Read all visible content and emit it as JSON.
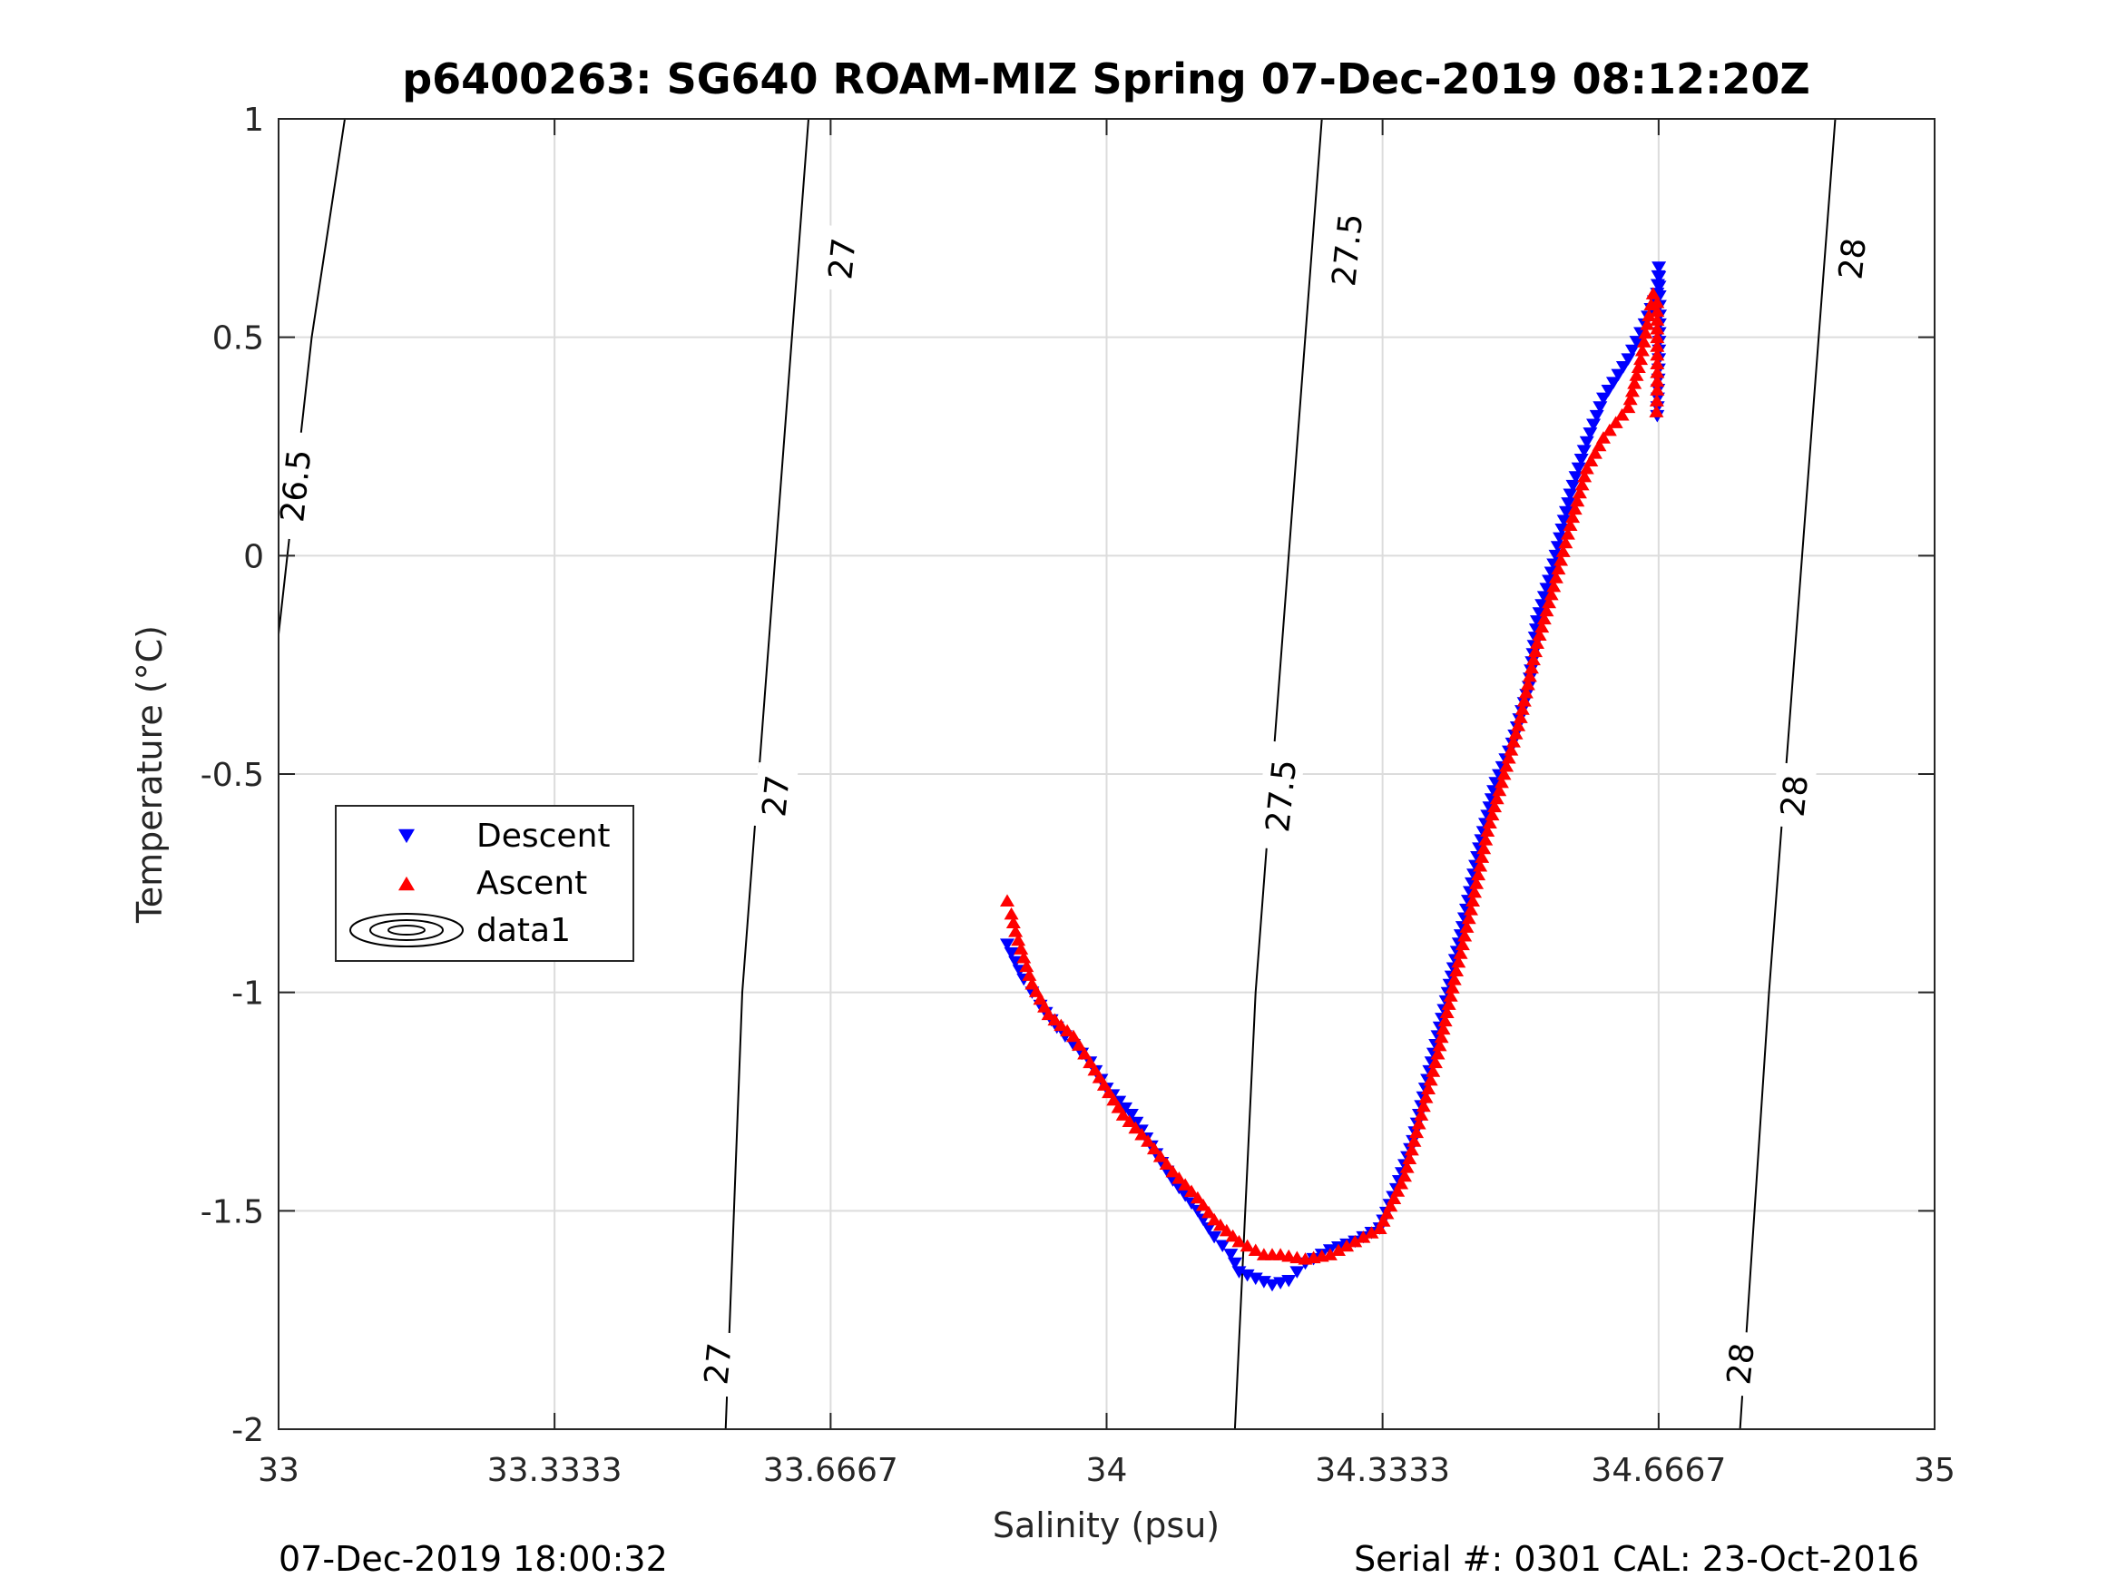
{
  "chart_data": {
    "type": "scatter",
    "title": "p6400263: SG640 ROAM-MIZ Spring 07-Dec-2019 08:12:20Z",
    "xlabel": "Salinity (psu)",
    "ylabel": "Temperature (°C)",
    "xlim": [
      33,
      35
    ],
    "ylim": [
      -2,
      1
    ],
    "x_ticks": [
      33,
      33.3333,
      33.6667,
      34,
      34.3333,
      34.6667,
      35
    ],
    "x_tick_labels": [
      "33",
      "33.3333",
      "33.6667",
      "34",
      "34.3333",
      "34.6667",
      "35"
    ],
    "y_ticks": [
      -2,
      -1.5,
      -1,
      -0.5,
      0,
      0.5,
      1
    ],
    "y_tick_labels": [
      "-2",
      "-1.5",
      "-1",
      "-0.5",
      "0",
      "0.5",
      "1"
    ],
    "grid": true,
    "legend_position": "middle-left",
    "legend": [
      "Descent",
      "Ascent",
      "data1"
    ],
    "series": [
      {
        "name": "Descent",
        "marker": "triangle-down",
        "color": "#0000ff",
        "points": [
          [
            33.88,
            -0.89
          ],
          [
            33.89,
            -0.93
          ],
          [
            33.9,
            -0.97
          ],
          [
            33.91,
            -1.0
          ],
          [
            33.92,
            -1.03
          ],
          [
            33.94,
            -1.08
          ],
          [
            33.96,
            -1.12
          ],
          [
            33.98,
            -1.16
          ],
          [
            34.0,
            -1.22
          ],
          [
            34.03,
            -1.28
          ],
          [
            34.06,
            -1.37
          ],
          [
            34.08,
            -1.43
          ],
          [
            34.11,
            -1.5
          ],
          [
            34.13,
            -1.56
          ],
          [
            34.15,
            -1.6
          ],
          [
            34.16,
            -1.64
          ],
          [
            34.2,
            -1.67
          ],
          [
            34.22,
            -1.66
          ],
          [
            34.24,
            -1.62
          ],
          [
            34.27,
            -1.59
          ],
          [
            34.3,
            -1.57
          ],
          [
            34.33,
            -1.54
          ],
          [
            34.35,
            -1.45
          ],
          [
            34.37,
            -1.34
          ],
          [
            34.39,
            -1.18
          ],
          [
            34.41,
            -1.02
          ],
          [
            34.43,
            -0.85
          ],
          [
            34.45,
            -0.67
          ],
          [
            34.47,
            -0.52
          ],
          [
            34.49,
            -0.43
          ],
          [
            34.51,
            -0.3
          ],
          [
            34.52,
            -0.15
          ],
          [
            34.54,
            -0.02
          ],
          [
            34.56,
            0.14
          ],
          [
            34.58,
            0.26
          ],
          [
            34.6,
            0.36
          ],
          [
            34.63,
            0.45
          ],
          [
            34.65,
            0.53
          ],
          [
            34.665,
            0.6
          ],
          [
            34.667,
            0.66
          ],
          [
            34.668,
            0.55
          ],
          [
            34.667,
            0.45
          ],
          [
            34.666,
            0.38
          ],
          [
            34.665,
            0.32
          ]
        ]
      },
      {
        "name": "Ascent",
        "marker": "triangle-up",
        "color": "#ff0000",
        "points": [
          [
            33.88,
            -0.79
          ],
          [
            33.885,
            -0.82
          ],
          [
            33.89,
            -0.86
          ],
          [
            33.9,
            -0.92
          ],
          [
            33.91,
            -0.98
          ],
          [
            33.93,
            -1.05
          ],
          [
            33.96,
            -1.1
          ],
          [
            33.98,
            -1.16
          ],
          [
            34.02,
            -1.28
          ],
          [
            34.05,
            -1.34
          ],
          [
            34.08,
            -1.41
          ],
          [
            34.11,
            -1.47
          ],
          [
            34.13,
            -1.52
          ],
          [
            34.16,
            -1.57
          ],
          [
            34.19,
            -1.6
          ],
          [
            34.21,
            -1.6
          ],
          [
            34.24,
            -1.61
          ],
          [
            34.27,
            -1.6
          ],
          [
            34.3,
            -1.57
          ],
          [
            34.33,
            -1.54
          ],
          [
            34.36,
            -1.42
          ],
          [
            34.38,
            -1.28
          ],
          [
            34.4,
            -1.14
          ],
          [
            34.42,
            -0.97
          ],
          [
            34.44,
            -0.81
          ],
          [
            34.46,
            -0.63
          ],
          [
            34.48,
            -0.5
          ],
          [
            34.5,
            -0.37
          ],
          [
            34.52,
            -0.2
          ],
          [
            34.54,
            -0.07
          ],
          [
            34.56,
            0.07
          ],
          [
            34.58,
            0.2
          ],
          [
            34.6,
            0.27
          ],
          [
            34.63,
            0.34
          ],
          [
            34.645,
            0.45
          ],
          [
            34.655,
            0.55
          ],
          [
            34.66,
            0.6
          ],
          [
            34.665,
            0.58
          ],
          [
            34.665,
            0.48
          ],
          [
            34.665,
            0.38
          ],
          [
            34.664,
            0.33
          ]
        ]
      }
    ],
    "density_contours": [
      {
        "label": "27",
        "values": [
          [
            33.54,
            -2.0
          ],
          [
            33.56,
            -1.0
          ],
          [
            33.6,
            0.0
          ],
          [
            33.64,
            1.0
          ]
        ]
      },
      {
        "label": "27.5",
        "values": [
          [
            34.155,
            -2.0
          ],
          [
            34.18,
            -1.0
          ],
          [
            34.22,
            0.0
          ],
          [
            34.26,
            1.0
          ]
        ]
      },
      {
        "label": "28",
        "values": [
          [
            34.765,
            -2.0
          ],
          [
            34.8,
            -1.0
          ],
          [
            34.84,
            0.0
          ],
          [
            34.88,
            1.0
          ]
        ]
      },
      {
        "label": "26.5",
        "values": [
          [
            33.0,
            -0.18
          ],
          [
            33.04,
            0.5
          ],
          [
            33.08,
            1.0
          ]
        ]
      }
    ],
    "contour_label_positions": [
      {
        "label": "27",
        "at": [
          33.53,
          -1.85
        ]
      },
      {
        "label": "27",
        "at": [
          33.6,
          -0.55
        ]
      },
      {
        "label": "27",
        "at": [
          33.68,
          0.68
        ]
      },
      {
        "label": "27.5",
        "at": [
          34.21,
          -0.55
        ]
      },
      {
        "label": "27.5",
        "at": [
          34.29,
          0.7
        ]
      },
      {
        "label": "28",
        "at": [
          34.765,
          -1.85
        ]
      },
      {
        "label": "28",
        "at": [
          34.83,
          -0.55
        ]
      },
      {
        "label": "28",
        "at": [
          34.9,
          0.68
        ]
      },
      {
        "label": "26.5",
        "at": [
          33.02,
          0.16
        ]
      }
    ]
  },
  "footer": {
    "left": "07-Dec-2019 18:00:32",
    "right": "Serial #: 0301  CAL: 23-Oct-2016"
  }
}
